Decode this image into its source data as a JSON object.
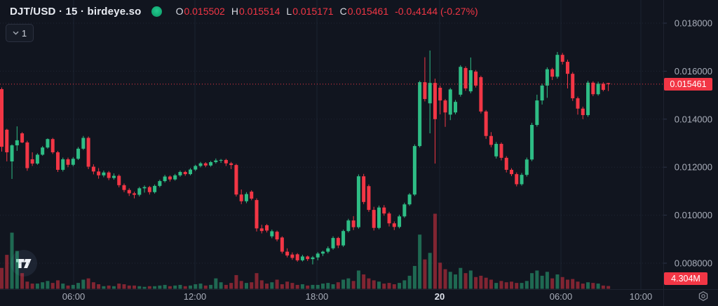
{
  "header": {
    "symbol_title": "DJT/USD · 15 · birdeye.so",
    "legend": {
      "o_label": "O",
      "o": "0.015502",
      "h_label": "H",
      "h": "0.015514",
      "l_label": "L",
      "l": "0.015171",
      "c_label": "C",
      "c": "0.015461",
      "change": "-0.0₄4144 (-0.27%)"
    },
    "interval_button": {
      "value": "1"
    }
  },
  "icons": {
    "status_dot": "status-dot",
    "chevron": "chevron-down-icon",
    "gear": "settings-gear-icon",
    "watermark": "tradingview-logo"
  },
  "colors": {
    "background": "#11151f",
    "up": "#2ebd85",
    "down": "#f23645",
    "badge": "#f23645",
    "grid": "#1c2230",
    "grid_dotted": "#2c3448",
    "separator": "#1e2330",
    "axis_text": "#a9aeba",
    "axis_text_strong": "#dfe3ec"
  },
  "price_axis": {
    "labels": [
      {
        "value": 0.018,
        "label": "0.018000"
      },
      {
        "value": 0.016,
        "label": "0.016000"
      },
      {
        "value": 0.014,
        "label": "0.014000"
      },
      {
        "value": 0.012,
        "label": "0.012000"
      },
      {
        "value": 0.01,
        "label": "0.010000"
      },
      {
        "value": 0.008,
        "label": "0.008000"
      }
    ],
    "current_price_label": "0.015461",
    "current_volume_label": "4.304M"
  },
  "x_axis": {
    "ticks": [
      {
        "label": "06:00",
        "x": 105,
        "strong": false
      },
      {
        "label": "12:00",
        "x": 278,
        "strong": false
      },
      {
        "label": "18:00",
        "x": 452,
        "strong": false
      },
      {
        "label": "20",
        "x": 627,
        "strong": true
      },
      {
        "label": "06:00",
        "x": 800,
        "strong": false
      },
      {
        "label": "10:00",
        "x": 914,
        "strong": false
      }
    ]
  },
  "chart_data": {
    "type": "candlestick",
    "symbol": "DJT/USD",
    "interval": "15",
    "source": "birdeye.so",
    "ylim": [
      0.0076,
      0.0172
    ],
    "grid": true,
    "last": {
      "open": 0.015502,
      "high": 0.015514,
      "low": 0.015171,
      "close": 0.015461,
      "change": "-0.0₄4144",
      "change_pct": "-0.27%"
    },
    "price_scale": 1e-05,
    "volume_unit": "M",
    "candles_note": "each candle = [open, high, low, close, volume] with prices in units of price_scale (1e-5 USD), volume in millions; ~15-min candles left-to-right",
    "candles": [
      [
        1525,
        1532,
        1265,
        1285,
        32
      ],
      [
        1356,
        1360,
        1224,
        1262,
        52
      ],
      [
        1224,
        1295,
        1151,
        1291,
        86
      ],
      [
        1291,
        1370,
        1268,
        1312,
        58
      ],
      [
        1341,
        1346,
        1300,
        1303,
        24
      ],
      [
        1303,
        1310,
        1185,
        1196,
        11
      ],
      [
        1233,
        1262,
        1205,
        1215,
        8
      ],
      [
        1215,
        1258,
        1210,
        1252,
        8
      ],
      [
        1252,
        1288,
        1248,
        1282,
        10
      ],
      [
        1282,
        1320,
        1277,
        1317,
        12
      ],
      [
        1317,
        1322,
        1255,
        1262,
        9
      ],
      [
        1262,
        1268,
        1180,
        1189,
        13
      ],
      [
        1189,
        1240,
        1182,
        1233,
        8
      ],
      [
        1233,
        1240,
        1200,
        1210,
        5
      ],
      [
        1210,
        1242,
        1204,
        1235,
        6
      ],
      [
        1235,
        1284,
        1230,
        1277,
        9
      ],
      [
        1277,
        1330,
        1272,
        1322,
        14
      ],
      [
        1322,
        1328,
        1192,
        1202,
        16
      ],
      [
        1202,
        1212,
        1170,
        1182,
        10
      ],
      [
        1182,
        1196,
        1152,
        1166,
        7
      ],
      [
        1166,
        1186,
        1158,
        1178,
        4
      ],
      [
        1178,
        1184,
        1146,
        1155,
        5
      ],
      [
        1155,
        1174,
        1148,
        1164,
        4
      ],
      [
        1164,
        1170,
        1116,
        1125,
        8
      ],
      [
        1125,
        1132,
        1096,
        1105,
        7
      ],
      [
        1105,
        1112,
        1080,
        1091,
        5
      ],
      [
        1091,
        1098,
        1070,
        1085,
        5
      ],
      [
        1085,
        1118,
        1078,
        1112,
        4
      ],
      [
        1112,
        1124,
        1094,
        1117,
        3
      ],
      [
        1117,
        1122,
        1086,
        1096,
        4
      ],
      [
        1096,
        1128,
        1090,
        1122,
        4
      ],
      [
        1122,
        1148,
        1116,
        1142,
        5
      ],
      [
        1142,
        1168,
        1136,
        1161,
        6
      ],
      [
        1161,
        1166,
        1140,
        1149,
        4
      ],
      [
        1149,
        1172,
        1144,
        1166,
        5
      ],
      [
        1166,
        1186,
        1160,
        1180,
        6
      ],
      [
        1180,
        1185,
        1164,
        1171,
        4
      ],
      [
        1171,
        1196,
        1166,
        1190,
        5
      ],
      [
        1190,
        1210,
        1184,
        1205,
        7
      ],
      [
        1205,
        1222,
        1199,
        1216,
        8
      ],
      [
        1216,
        1221,
        1200,
        1207,
        5
      ],
      [
        1207,
        1226,
        1202,
        1221,
        6
      ],
      [
        1221,
        1236,
        1215,
        1228,
        16
      ],
      [
        1228,
        1234,
        1218,
        1230,
        10
      ],
      [
        1230,
        1235,
        1205,
        1216,
        6
      ],
      [
        1216,
        1222,
        1192,
        1209,
        9
      ],
      [
        1209,
        1214,
        1078,
        1086,
        21
      ],
      [
        1086,
        1107,
        1046,
        1058,
        12
      ],
      [
        1058,
        1096,
        1050,
        1088,
        9
      ],
      [
        1098,
        1104,
        1062,
        1069,
        10
      ],
      [
        1063,
        1070,
        932,
        945,
        24
      ],
      [
        945,
        960,
        924,
        934,
        13
      ],
      [
        958,
        963,
        928,
        936,
        8
      ],
      [
        912,
        940,
        904,
        933,
        10
      ],
      [
        931,
        936,
        891,
        899,
        14
      ],
      [
        907,
        912,
        840,
        848,
        7
      ],
      [
        848,
        862,
        824,
        832,
        11
      ],
      [
        836,
        845,
        814,
        822,
        9
      ],
      [
        837,
        842,
        806,
        812,
        6
      ],
      [
        812,
        835,
        807,
        828,
        7
      ],
      [
        828,
        832,
        809,
        817,
        5
      ],
      [
        817,
        830,
        795,
        824,
        6
      ],
      [
        824,
        846,
        812,
        840,
        6
      ],
      [
        840,
        852,
        830,
        848,
        8
      ],
      [
        848,
        870,
        841,
        862,
        9
      ],
      [
        862,
        912,
        856,
        905,
        7
      ],
      [
        905,
        910,
        863,
        874,
        10
      ],
      [
        874,
        940,
        868,
        934,
        14
      ],
      [
        934,
        985,
        928,
        978,
        16
      ],
      [
        978,
        996,
        938,
        950,
        12
      ],
      [
        950,
        1170,
        944,
        1162,
        28
      ],
      [
        1162,
        1172,
        1046,
        1055,
        22
      ],
      [
        1121,
        1128,
        1014,
        1022,
        16
      ],
      [
        1022,
        1035,
        936,
        947,
        13
      ],
      [
        947,
        1040,
        941,
        1032,
        11
      ],
      [
        1032,
        1042,
        998,
        1007,
        8
      ],
      [
        1007,
        1014,
        953,
        966,
        9
      ],
      [
        966,
        974,
        938,
        951,
        7
      ],
      [
        951,
        1002,
        945,
        995,
        9
      ],
      [
        995,
        1052,
        989,
        1045,
        13
      ],
      [
        1045,
        1092,
        1039,
        1086,
        20
      ],
      [
        1086,
        1295,
        1080,
        1288,
        35
      ],
      [
        1288,
        1560,
        1282,
        1554,
        83
      ],
      [
        1554,
        1658,
        1474,
        1484,
        45
      ],
      [
        1466,
        1686,
        1341,
        1551,
        55
      ],
      [
        1551,
        1569,
        1215,
        1400,
        115
      ],
      [
        1531,
        1540,
        1420,
        1478,
        40
      ],
      [
        1478,
        1484,
        1368,
        1428,
        30
      ],
      [
        1419,
        1530,
        1396,
        1524,
        26
      ],
      [
        1428,
        1480,
        1420,
        1472,
        22
      ],
      [
        1502,
        1625,
        1494,
        1618,
        32
      ],
      [
        1613,
        1620,
        1518,
        1528,
        24
      ],
      [
        1516,
        1657,
        1508,
        1604,
        28
      ],
      [
        1598,
        1605,
        1532,
        1540,
        18
      ],
      [
        1575,
        1581,
        1424,
        1432,
        20
      ],
      [
        1432,
        1438,
        1318,
        1330,
        17
      ],
      [
        1330,
        1346,
        1283,
        1293,
        14
      ],
      [
        1245,
        1305,
        1236,
        1297,
        9
      ],
      [
        1297,
        1303,
        1228,
        1239,
        12
      ],
      [
        1239,
        1246,
        1178,
        1189,
        10
      ],
      [
        1189,
        1196,
        1163,
        1171,
        11
      ],
      [
        1171,
        1178,
        1120,
        1129,
        9
      ],
      [
        1129,
        1176,
        1123,
        1168,
        9
      ],
      [
        1168,
        1240,
        1161,
        1232,
        12
      ],
      [
        1232,
        1385,
        1225,
        1376,
        24
      ],
      [
        1376,
        1502,
        1369,
        1478,
        28
      ],
      [
        1478,
        1548,
        1461,
        1540,
        20
      ],
      [
        1540,
        1616,
        1489,
        1608,
        26
      ],
      [
        1608,
        1614,
        1563,
        1577,
        16
      ],
      [
        1577,
        1680,
        1569,
        1668,
        22
      ],
      [
        1668,
        1676,
        1628,
        1639,
        18
      ],
      [
        1639,
        1648,
        1528,
        1589,
        14
      ],
      [
        1589,
        1596,
        1476,
        1487,
        15
      ],
      [
        1487,
        1494,
        1419,
        1444,
        11
      ],
      [
        1444,
        1452,
        1400,
        1417,
        8
      ],
      [
        1417,
        1560,
        1410,
        1552,
        10
      ],
      [
        1552,
        1558,
        1496,
        1504,
        9
      ],
      [
        1504,
        1556,
        1498,
        1548,
        8
      ],
      [
        1548,
        1554,
        1516,
        1522,
        5
      ],
      [
        1550.2,
        1551.4,
        1517.1,
        1546.1,
        4.304
      ]
    ]
  }
}
